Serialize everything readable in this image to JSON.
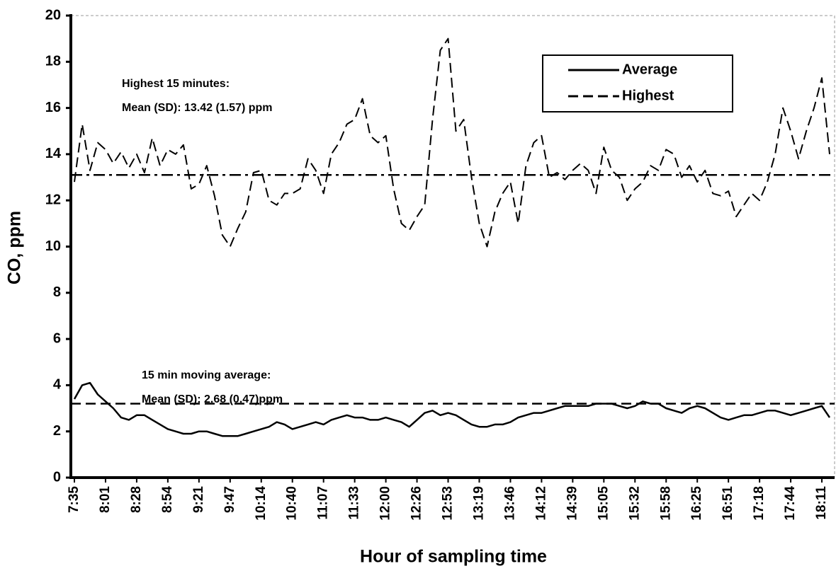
{
  "chart_data": {
    "type": "line",
    "x_label": "Hour of sampling time",
    "y_label": "CO, ppm",
    "categories": [
      "7:35",
      null,
      null,
      null,
      "8:01",
      null,
      null,
      null,
      "8:28",
      null,
      null,
      null,
      "8:54",
      null,
      null,
      null,
      "9:21",
      null,
      null,
      null,
      "9:47",
      null,
      null,
      null,
      "10:14",
      null,
      null,
      null,
      "10:40",
      null,
      null,
      null,
      "11:07",
      null,
      null,
      null,
      "11:33",
      null,
      null,
      null,
      "12:00",
      null,
      null,
      null,
      "12:26",
      null,
      null,
      null,
      "12:53",
      null,
      null,
      null,
      "13:19",
      null,
      null,
      null,
      "13:46",
      null,
      null,
      null,
      "14:12",
      null,
      null,
      null,
      "14:39",
      null,
      null,
      null,
      "15:05",
      null,
      null,
      null,
      "15:32",
      null,
      null,
      null,
      "15:58",
      null,
      null,
      null,
      "16:25",
      null,
      null,
      null,
      "16:51",
      null,
      null,
      null,
      "17:18",
      null,
      null,
      null,
      "17:44",
      null,
      null,
      null,
      "18:11",
      null
    ],
    "series": [
      {
        "name": "Average",
        "color": "#000000",
        "style": "solid",
        "values": [
          3.4,
          4.0,
          4.1,
          3.6,
          3.3,
          3.0,
          2.6,
          2.5,
          2.7,
          2.7,
          2.5,
          2.3,
          2.1,
          2.0,
          1.9,
          1.9,
          2.0,
          2.0,
          1.9,
          1.8,
          1.8,
          1.8,
          1.9,
          2.0,
          2.1,
          2.2,
          2.4,
          2.3,
          2.1,
          2.2,
          2.3,
          2.4,
          2.3,
          2.5,
          2.6,
          2.7,
          2.6,
          2.6,
          2.5,
          2.5,
          2.6,
          2.5,
          2.4,
          2.2,
          2.5,
          2.8,
          2.9,
          2.7,
          2.8,
          2.7,
          2.5,
          2.3,
          2.2,
          2.2,
          2.3,
          2.3,
          2.4,
          2.6,
          2.7,
          2.8,
          2.8,
          2.9,
          3.0,
          3.1,
          3.1,
          3.1,
          3.1,
          3.2,
          3.2,
          3.2,
          3.1,
          3.0,
          3.1,
          3.3,
          3.2,
          3.2,
          3.0,
          2.9,
          2.8,
          3.0,
          3.1,
          3.0,
          2.8,
          2.6,
          2.5,
          2.6,
          2.7,
          2.7,
          2.8,
          2.9,
          2.9,
          2.8,
          2.7,
          2.8,
          2.9,
          3.0,
          3.1,
          2.6
        ]
      },
      {
        "name": "Highest",
        "color": "#000000",
        "style": "dash",
        "values": [
          12.8,
          15.3,
          13.3,
          14.5,
          14.2,
          13.6,
          14.1,
          13.4,
          14.0,
          13.2,
          14.7,
          13.5,
          14.2,
          14.0,
          14.4,
          12.5,
          12.7,
          13.5,
          12.2,
          10.5,
          10.0,
          10.8,
          11.5,
          13.2,
          13.3,
          12.0,
          11.8,
          12.3,
          12.3,
          12.5,
          13.8,
          13.3,
          12.3,
          14.0,
          14.5,
          15.3,
          15.5,
          16.4,
          14.8,
          14.5,
          14.8,
          12.5,
          11.0,
          10.7,
          11.3,
          11.8,
          15.5,
          18.5,
          19.0,
          15.0,
          15.5,
          13.0,
          11.0,
          10.0,
          11.5,
          12.3,
          12.8,
          11.0,
          13.5,
          14.5,
          14.8,
          13.0,
          13.2,
          12.9,
          13.3,
          13.6,
          13.3,
          12.3,
          14.3,
          13.3,
          13.0,
          12.0,
          12.5,
          12.8,
          13.5,
          13.3,
          14.2,
          14.0,
          13.0,
          13.5,
          12.8,
          13.3,
          12.3,
          12.2,
          12.4,
          11.3,
          11.8,
          12.3,
          12.0,
          12.8,
          14.0,
          16.0,
          15.0,
          13.8,
          15.0,
          16.0,
          17.3,
          14.0
        ]
      }
    ],
    "reference_lines": [
      {
        "value": 13.1,
        "style": "dash-dot"
      },
      {
        "value": 3.2,
        "style": "dash"
      }
    ],
    "annotations": [
      "Highest 15 minutes:",
      "Mean (SD): 13.42 (1.57) ppm",
      "15 min moving average:",
      "Mean (SD): 2.68 (0.47)ppm"
    ],
    "ylim": [
      0,
      20
    ],
    "yticks": [
      0,
      2,
      4,
      6,
      8,
      10,
      12,
      14,
      16,
      18,
      20
    ],
    "grid": false,
    "legend": "upper right"
  }
}
